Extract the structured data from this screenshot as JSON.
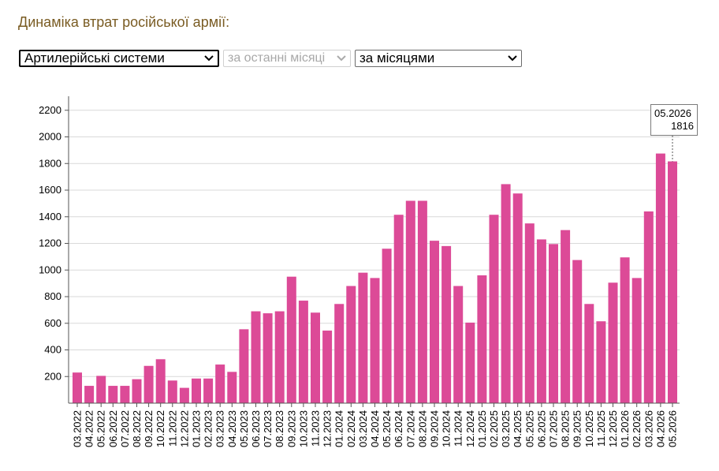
{
  "header": {
    "title": "Динаміка втрат російської армії:"
  },
  "controls": {
    "category": {
      "selected": "Артилерійські системи",
      "icon": "chevron-down-icon"
    },
    "period": {
      "selected": "за останні місяці",
      "icon": "chevron-down-icon",
      "disabled": true
    },
    "grouping": {
      "selected": "за місяцями",
      "icon": "chevron-down-icon"
    }
  },
  "colors": {
    "bar": "#dc4a97",
    "grid": "#d9d9d9",
    "axis": "#555555",
    "title": "#7a5c23"
  },
  "tooltip": {
    "date": "05.2026",
    "value": "1816"
  },
  "chart_data": {
    "type": "bar",
    "title": "",
    "xlabel": "",
    "ylabel": "",
    "ylim": [
      0,
      2300
    ],
    "yticks": [
      200,
      400,
      600,
      800,
      1000,
      1200,
      1400,
      1600,
      1800,
      2000,
      2200
    ],
    "grid": true,
    "legend": "none",
    "categories": [
      "03.2022",
      "04.2022",
      "05.2022",
      "06.2022",
      "07.2022",
      "08.2022",
      "09.2022",
      "10.2022",
      "11.2022",
      "12.2022",
      "01.2023",
      "02.2023",
      "03.2023",
      "04.2023",
      "05.2023",
      "06.2023",
      "07.2023",
      "08.2023",
      "09.2023",
      "10.2023",
      "11.2023",
      "12.2023",
      "01.2024",
      "02.2024",
      "03.2024",
      "04.2024",
      "05.2024",
      "06.2024",
      "07.2024",
      "08.2024",
      "09.2024",
      "10.2024",
      "11.2024",
      "12.2024",
      "01.2025",
      "02.2025",
      "03.2025",
      "04.2025",
      "05.2025",
      "06.2025",
      "07.2025",
      "08.2025",
      "09.2025",
      "10.2025",
      "11.2025",
      "12.2025",
      "01.2026",
      "02.2026",
      "03.2026",
      "04.2026",
      "05.2026"
    ],
    "values": [
      230,
      130,
      205,
      130,
      130,
      180,
      280,
      330,
      170,
      115,
      185,
      185,
      290,
      235,
      555,
      690,
      675,
      690,
      950,
      770,
      680,
      545,
      745,
      880,
      980,
      940,
      1160,
      1415,
      1520,
      1520,
      1220,
      1180,
      880,
      605,
      960,
      1415,
      1645,
      1575,
      1350,
      1230,
      1195,
      1300,
      1075,
      745,
      615,
      905,
      1095,
      940,
      1440,
      1875,
      1816
    ],
    "highlighted": "05.2026"
  }
}
